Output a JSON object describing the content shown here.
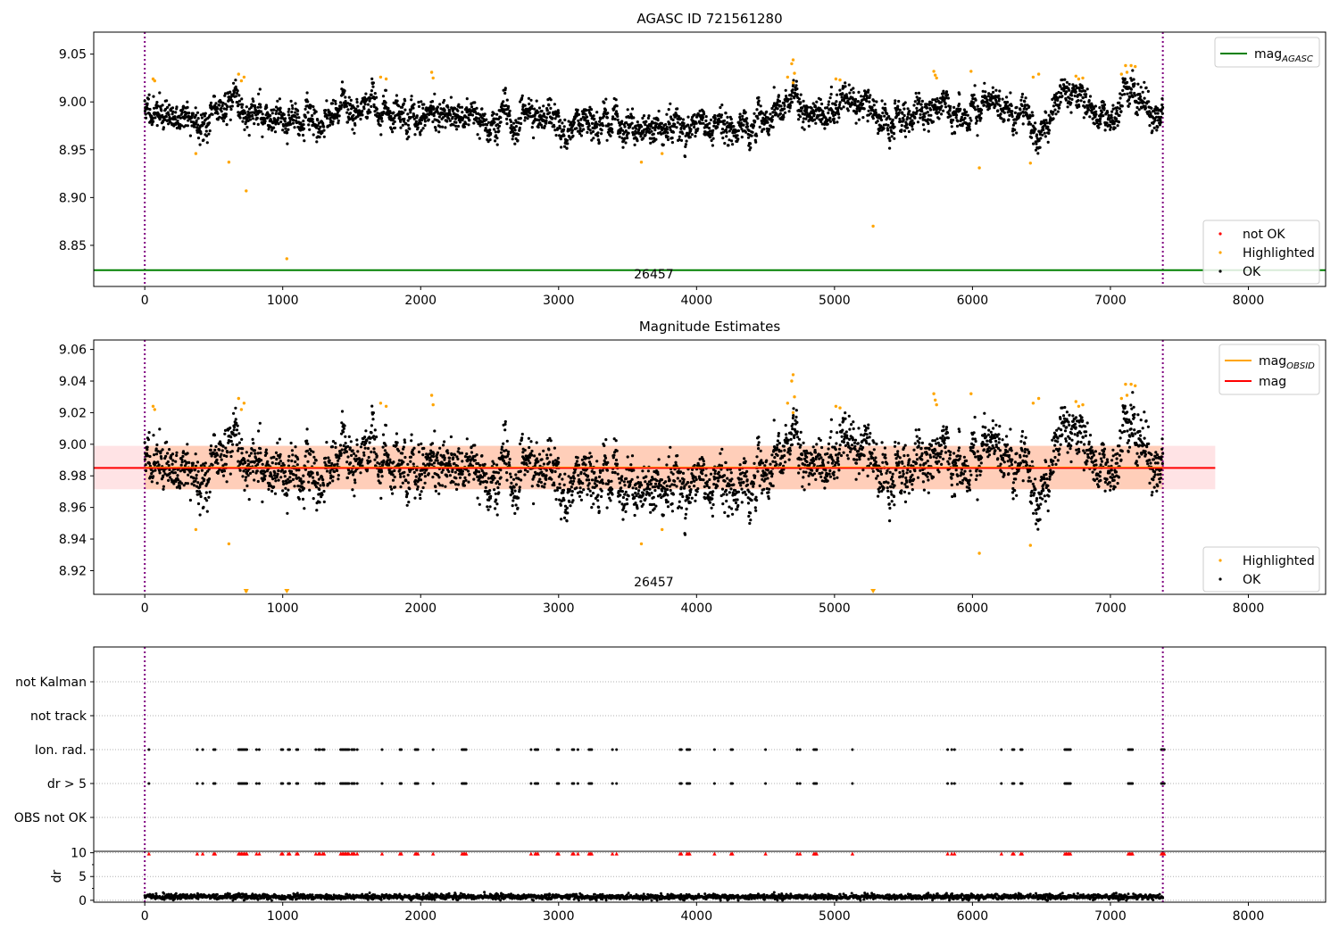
{
  "figure": {
    "background": "#ffffff"
  },
  "chart_data": [
    {
      "type": "scatter",
      "title": "AGASC ID 721561280",
      "xlim": [
        -370,
        8560
      ],
      "ylim": [
        8.807,
        9.073
      ],
      "xticks": [
        0,
        1000,
        2000,
        3000,
        4000,
        5000,
        6000,
        7000,
        8000
      ],
      "yticks": [
        8.85,
        8.9,
        8.95,
        9.0,
        9.05
      ],
      "ytick_labels": [
        "8.85",
        "8.90",
        "8.95",
        "9.00",
        "9.05"
      ],
      "grid": false,
      "obs_boundaries": [
        0,
        7380
      ],
      "obs_label": {
        "text": "26457",
        "x": 3690
      },
      "hline": {
        "name": "mag_AGASC",
        "y": 8.824,
        "color": "#008000"
      },
      "legend_lines": [
        {
          "label": "mag",
          "sub": "AGASC",
          "color": "#008000"
        }
      ],
      "legend_points": [
        {
          "label": "not OK",
          "color": "#ff0000"
        },
        {
          "label": "Highlighted",
          "color": "#ffa500"
        },
        {
          "label": "OK",
          "color": "#000000"
        }
      ],
      "series": [
        {
          "name": "OK",
          "color": "#000000",
          "generator": {
            "x_start": 0,
            "x_end": 7380,
            "count": 3500,
            "seed": 11,
            "noise": 0.0125,
            "trend_x": [
              0,
              200,
              450,
              650,
              800,
              1000,
              1400,
              1700,
              2000,
              2400,
              2900,
              3300,
              3700,
              3900,
              4400,
              4650,
              4700,
              4800,
              5000,
              5400,
              5700,
              5900,
              6100,
              6500,
              6750,
              7000,
              7100,
              7380
            ],
            "trend_y": [
              8.993,
              8.985,
              8.98,
              9.005,
              8.985,
              8.977,
              8.985,
              8.992,
              8.99,
              8.98,
              8.985,
              8.978,
              8.968,
              8.978,
              8.975,
              8.99,
              9.005,
              8.985,
              9.0,
              8.985,
              8.995,
              8.983,
              9.002,
              8.975,
              9.003,
              8.978,
              9.01,
              8.985
            ]
          }
        },
        {
          "name": "Highlighted",
          "color": "#ffa500",
          "points": [
            [
              60,
              9.024
            ],
            [
              72,
              9.022
            ],
            [
              370,
              8.946
            ],
            [
              610,
              8.937
            ],
            [
              680,
              9.029
            ],
            [
              700,
              9.022
            ],
            [
              720,
              9.026
            ],
            [
              735,
              8.907
            ],
            [
              1030,
              8.836
            ],
            [
              1710,
              9.026
            ],
            [
              1750,
              9.024
            ],
            [
              2080,
              9.031
            ],
            [
              2090,
              9.025
            ],
            [
              3600,
              8.937
            ],
            [
              3750,
              8.946
            ],
            [
              4660,
              9.026
            ],
            [
              4690,
              9.04
            ],
            [
              4700,
              9.044
            ],
            [
              4700,
              9.02
            ],
            [
              4710,
              9.03
            ],
            [
              5010,
              9.024
            ],
            [
              5040,
              9.023
            ],
            [
              5280,
              8.87
            ],
            [
              5720,
              9.032
            ],
            [
              5730,
              9.028
            ],
            [
              5740,
              9.025
            ],
            [
              5990,
              9.032
            ],
            [
              6050,
              8.931
            ],
            [
              6420,
              8.936
            ],
            [
              6440,
              9.026
            ],
            [
              6480,
              9.029
            ],
            [
              6750,
              9.027
            ],
            [
              6770,
              9.024
            ],
            [
              6800,
              9.025
            ],
            [
              7080,
              9.029
            ],
            [
              7110,
              9.038
            ],
            [
              7120,
              9.031
            ],
            [
              7150,
              9.038
            ],
            [
              7180,
              9.037
            ]
          ]
        }
      ]
    },
    {
      "type": "scatter",
      "title": "Magnitude Estimates",
      "xlim": [
        -370,
        8560
      ],
      "ylim": [
        8.905,
        9.066
      ],
      "xticks": [
        0,
        1000,
        2000,
        3000,
        4000,
        5000,
        6000,
        7000,
        8000
      ],
      "yticks": [
        8.92,
        8.94,
        8.96,
        8.98,
        9.0,
        9.02,
        9.04,
        9.06
      ],
      "ytick_labels": [
        "8.92",
        "8.94",
        "8.96",
        "8.98",
        "9.00",
        "9.02",
        "9.04",
        "9.06"
      ],
      "grid": false,
      "obs_boundaries": [
        0,
        7380
      ],
      "obs_label": {
        "text": "26457",
        "x": 3690
      },
      "band_wide": {
        "x_range": [
          -370,
          7760
        ],
        "y_range": [
          8.9715,
          8.999
        ],
        "color": "#ff9aa2",
        "opacity": 0.28
      },
      "band_obs": {
        "x_range": [
          0,
          7380
        ],
        "y_range": [
          8.9715,
          8.999
        ],
        "color": "#ffa566",
        "opacity": 0.35
      },
      "line_mag": {
        "x_range": [
          -370,
          7760
        ],
        "y": 8.985,
        "color": "#ff0000"
      },
      "line_mag_obsid": {
        "x_range": [
          0,
          7380
        ],
        "y": 8.985,
        "color": "#ffa500"
      },
      "legend_lines": [
        {
          "label": "mag",
          "sub": "OBSID",
          "color": "#ffa500"
        },
        {
          "label": "mag",
          "sub": "",
          "color": "#ff0000"
        }
      ],
      "legend_points": [
        {
          "label": "Highlighted",
          "color": "#ffa500"
        },
        {
          "label": "OK",
          "color": "#000000"
        }
      ],
      "clipped_markers": [
        735,
        1030,
        5280
      ],
      "series": [
        {
          "name": "OK",
          "color": "#000000",
          "generator_ref": 0
        },
        {
          "name": "Highlighted",
          "color": "#ffa500",
          "points_ref": 0
        }
      ]
    },
    {
      "type": "scatter",
      "title": "",
      "xlim": [
        -370,
        8560
      ],
      "categories": [
        "not Kalman",
        "not track",
        "Ion. rad.",
        "dr > 5",
        "OBS not OK"
      ],
      "grid": true,
      "obs_boundaries": [
        0,
        7380
      ],
      "flag_rows": {
        "Ion. rad.": [
          30,
          380,
          420,
          500,
          510,
          680,
          690,
          700,
          710,
          720,
          730,
          740,
          810,
          830,
          990,
          1000,
          1040,
          1050,
          1100,
          1110,
          1240,
          1260,
          1270,
          1290,
          1300,
          1420,
          1430,
          1440,
          1450,
          1460,
          1470,
          1480,
          1500,
          1510,
          1520,
          1540,
          1720,
          1850,
          1860,
          1960,
          1970,
          1980,
          2090,
          2300,
          2310,
          2320,
          2330,
          2800,
          2830,
          2840,
          2850,
          2990,
          3000,
          3100,
          3110,
          3140,
          3220,
          3230,
          3240,
          3390,
          3420,
          3880,
          3890,
          3930,
          3940,
          3950,
          4130,
          4250,
          4260,
          4500,
          4730,
          4750,
          4850,
          4860,
          4870,
          5130,
          5820,
          5850,
          5870,
          6210,
          6290,
          6300,
          6350,
          6360,
          6670,
          6680,
          6690,
          6700,
          6710,
          7130,
          7140,
          7150,
          7160,
          7370,
          7380,
          7390
        ],
        "dr > 5": [
          30,
          380,
          420,
          500,
          510,
          680,
          690,
          700,
          710,
          720,
          730,
          740,
          810,
          830,
          990,
          1000,
          1040,
          1050,
          1100,
          1110,
          1240,
          1260,
          1270,
          1290,
          1300,
          1420,
          1430,
          1440,
          1450,
          1460,
          1470,
          1480,
          1500,
          1510,
          1520,
          1540,
          1720,
          1850,
          1860,
          1960,
          1970,
          1980,
          2090,
          2300,
          2310,
          2320,
          2330,
          2800,
          2830,
          2840,
          2850,
          2990,
          3000,
          3100,
          3110,
          3140,
          3220,
          3230,
          3240,
          3390,
          3420,
          3880,
          3890,
          3930,
          3940,
          3950,
          4130,
          4250,
          4260,
          4500,
          4730,
          4750,
          4850,
          4860,
          4870,
          5130,
          5820,
          5850,
          5870,
          6210,
          6290,
          6300,
          6350,
          6360,
          6670,
          6680,
          6690,
          6700,
          6710,
          7130,
          7140,
          7150,
          7160,
          7370,
          7380,
          7390
        ]
      }
    },
    {
      "type": "scatter",
      "title": "",
      "ylabel": "dr",
      "xlim": [
        -370,
        8560
      ],
      "ylim": [
        -0.4,
        10.3
      ],
      "xticks": [
        0,
        1000,
        2000,
        3000,
        4000,
        5000,
        6000,
        7000,
        8000
      ],
      "yticks": [
        0,
        5,
        10
      ],
      "grid": true,
      "obs_boundaries": [
        0,
        7380
      ],
      "dr_points": {
        "x_start": 0,
        "x_end": 7380,
        "count": 2600,
        "seed": 29,
        "mean": 0.6,
        "spread": 0.45
      },
      "dr_flagged": {
        "y": 9.8,
        "color": "#ff0000",
        "x_ref": "dr > 5"
      }
    }
  ]
}
